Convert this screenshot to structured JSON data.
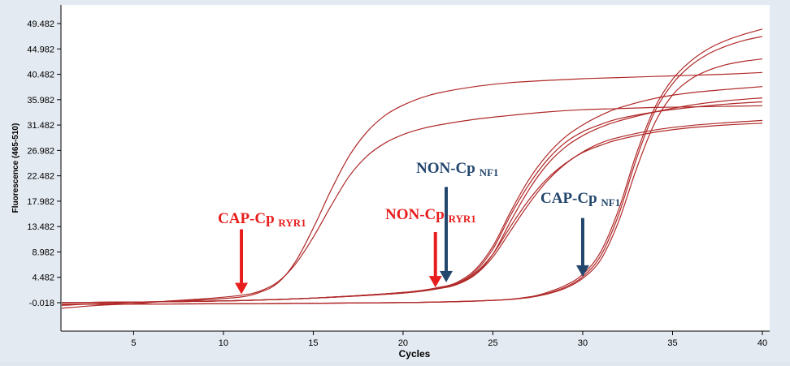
{
  "chart_data": {
    "type": "line",
    "xlabel": "Cycles",
    "ylabel": "Fluorescence (465-510)",
    "xlim": [
      1,
      40
    ],
    "ylim": [
      -2.0,
      51.5
    ],
    "xticks": [
      5,
      10,
      15,
      20,
      25,
      30,
      35,
      40
    ],
    "xtick_labels": [
      "5",
      "10",
      "15",
      "20",
      "25",
      "30",
      "35",
      "40"
    ],
    "yticks": [
      -0.018,
      4.482,
      8.982,
      13.482,
      17.982,
      22.482,
      26.982,
      31.482,
      35.982,
      40.482,
      44.982,
      49.482
    ],
    "ytick_labels": [
      "-0.018",
      "4.482",
      "8.982",
      "13.482",
      "17.982",
      "22.482",
      "26.982",
      "31.482",
      "35.982",
      "40.482",
      "44.982",
      "49.482"
    ],
    "grid": false,
    "legend": "none",
    "line_color": "#b02828",
    "series": [
      {
        "x": [
          1,
          3,
          5,
          7,
          9,
          11,
          12,
          13,
          14,
          15,
          16,
          17,
          18,
          19,
          20,
          21,
          22,
          24,
          26,
          28,
          30,
          32,
          34,
          36,
          38,
          40
        ],
        "values": [
          -1.0,
          -0.5,
          -0.2,
          0.3,
          0.7,
          1.3,
          2.0,
          3.6,
          6.8,
          11.6,
          17.2,
          22.4,
          26.0,
          28.3,
          29.8,
          30.8,
          31.5,
          32.5,
          33.2,
          33.8,
          34.2,
          34.4,
          34.6,
          34.7,
          34.8,
          34.9
        ]
      },
      {
        "x": [
          1,
          3,
          5,
          7,
          9,
          11,
          12,
          13,
          14,
          15,
          16,
          17,
          18,
          19,
          20,
          21,
          22,
          24,
          26,
          28,
          30,
          32,
          34,
          36,
          38,
          40
        ],
        "values": [
          -0.5,
          -0.2,
          0.0,
          0.2,
          0.5,
          1.0,
          1.8,
          3.4,
          7.2,
          13.2,
          20.0,
          26.0,
          30.3,
          33.2,
          35.0,
          36.3,
          37.2,
          38.3,
          39.0,
          39.4,
          39.7,
          39.9,
          40.1,
          40.3,
          40.5,
          40.8
        ]
      },
      {
        "x": [
          1,
          5,
          10,
          15,
          20,
          22,
          23,
          24,
          25,
          26,
          27,
          28,
          29,
          30,
          31,
          32,
          34,
          36,
          38,
          40
        ],
        "values": [
          0.0,
          0.1,
          0.3,
          0.8,
          1.8,
          2.6,
          3.4,
          5.5,
          9.5,
          15.6,
          20.9,
          25.2,
          28.3,
          30.3,
          31.6,
          32.6,
          33.8,
          34.6,
          35.2,
          35.6
        ]
      },
      {
        "x": [
          1,
          5,
          10,
          15,
          20,
          22,
          23,
          24,
          25,
          26,
          27,
          28,
          29,
          30,
          31,
          32,
          34,
          36,
          38,
          40
        ],
        "values": [
          0.0,
          0.1,
          0.3,
          0.8,
          1.8,
          2.6,
          3.3,
          5.0,
          8.6,
          14.5,
          20.0,
          24.4,
          27.5,
          29.6,
          31.1,
          32.2,
          33.8,
          35.0,
          35.8,
          36.3
        ]
      },
      {
        "x": [
          1,
          5,
          10,
          15,
          20,
          22,
          23,
          24,
          25,
          26,
          27,
          28,
          29,
          30,
          31,
          32,
          34,
          36,
          38,
          40
        ],
        "values": [
          0.0,
          0.1,
          0.3,
          0.8,
          1.8,
          2.7,
          3.6,
          5.8,
          10.0,
          16.2,
          21.8,
          26.1,
          29.3,
          31.5,
          33.2,
          34.5,
          36.2,
          37.2,
          37.8,
          38.3
        ]
      },
      {
        "x": [
          1,
          5,
          10,
          15,
          20,
          22,
          23,
          24,
          25,
          26,
          27,
          28,
          29,
          30,
          31,
          32,
          34,
          36,
          38,
          40
        ],
        "values": [
          0.0,
          0.1,
          0.3,
          0.8,
          1.7,
          2.5,
          3.3,
          5.2,
          8.6,
          13.6,
          18.2,
          21.9,
          24.6,
          26.6,
          27.9,
          28.9,
          30.2,
          31.0,
          31.5,
          31.8
        ]
      },
      {
        "x": [
          1,
          5,
          10,
          15,
          20,
          22,
          23,
          24,
          25,
          26,
          27,
          28,
          29,
          30,
          31,
          32,
          34,
          36,
          38,
          40
        ],
        "values": [
          0.0,
          0.1,
          0.3,
          0.8,
          1.7,
          2.5,
          3.2,
          4.9,
          8.1,
          12.8,
          17.5,
          21.5,
          24.5,
          26.7,
          28.3,
          29.3,
          30.6,
          31.4,
          31.9,
          32.3
        ]
      },
      {
        "x": [
          1,
          10,
          20,
          25,
          27,
          28,
          29,
          30,
          31,
          32,
          33,
          34,
          35,
          36,
          37,
          38,
          39,
          40
        ],
        "values": [
          -0.3,
          -0.2,
          0.0,
          0.4,
          1.0,
          1.8,
          3.0,
          5.0,
          9.0,
          16.5,
          26.5,
          34.5,
          39.6,
          42.8,
          45.0,
          46.5,
          47.6,
          48.5
        ]
      },
      {
        "x": [
          1,
          10,
          20,
          25,
          27,
          28,
          29,
          30,
          31,
          32,
          33,
          34,
          35,
          36,
          37,
          38,
          39,
          40
        ],
        "values": [
          -0.3,
          -0.2,
          0.0,
          0.4,
          0.9,
          1.6,
          2.7,
          4.6,
          8.3,
          15.6,
          25.6,
          33.8,
          38.8,
          42.0,
          44.1,
          45.5,
          46.5,
          47.2
        ]
      },
      {
        "x": [
          1,
          10,
          20,
          25,
          27,
          28,
          29,
          30,
          31,
          32,
          33,
          34,
          35,
          36,
          37,
          38,
          39,
          40
        ],
        "values": [
          -0.3,
          -0.2,
          0.0,
          0.4,
          0.9,
          1.5,
          2.5,
          4.3,
          7.6,
          14.4,
          23.8,
          31.8,
          36.8,
          39.6,
          41.2,
          42.2,
          42.8,
          43.2
        ]
      }
    ],
    "annotations": [
      {
        "text": "CAP-Cp",
        "subscript": "RYR1",
        "color": "#e81e1e",
        "arrow_x": 11.0,
        "arrow_y_top": 13.0,
        "arrow_y_tip": 1.5
      },
      {
        "text": "NON-Cp",
        "subscript": "RYR1",
        "color": "#e81e1e",
        "arrow_x": 21.8,
        "arrow_y_top": 12.5,
        "arrow_y_tip": 2.7
      },
      {
        "text": "NON-Cp",
        "subscript": "NF1",
        "color": "#23466d",
        "arrow_x": 22.4,
        "arrow_y_top": 20.5,
        "arrow_y_tip": 3.6
      },
      {
        "text": "CAP-Cp",
        "subscript": "NF1",
        "color": "#23466d",
        "arrow_x": 30.0,
        "arrow_y_top": 15.0,
        "arrow_y_tip": 4.6
      }
    ]
  }
}
